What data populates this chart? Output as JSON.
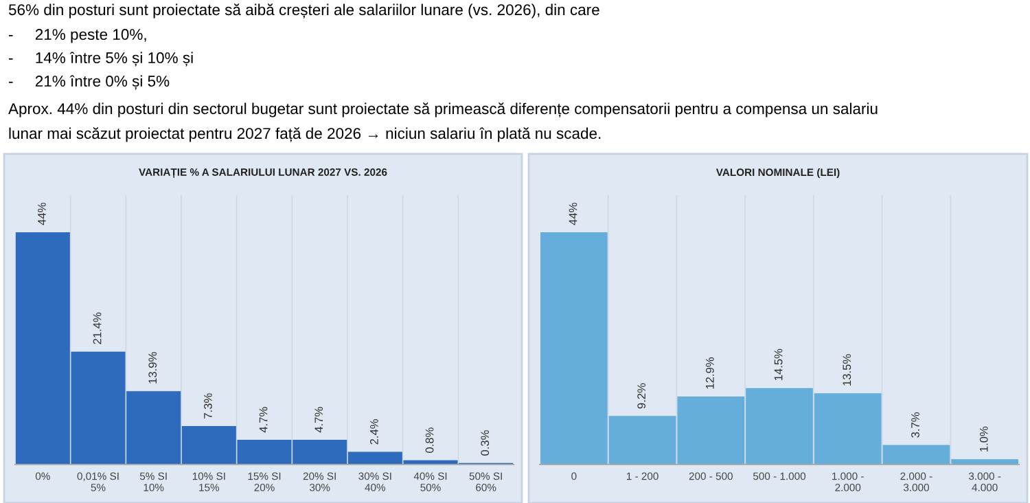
{
  "chart_data": [
    {
      "type": "other",
      "annotations": [
        "56% din posturi sunt proiectate să aibă creșteri ale salariilor lunare (vs. 2026), din care",
        "-     21% peste 10%,",
        "-     14% între 5% și 10% și",
        "-     21% între 0% și 5%",
        "Aprox. 44% din posturi din sectorul bugetar sunt proiectate să primească diferențe compensatorii pentru a compensa un salariu",
        "lunar mai scăzut proiectat pentru 2027 față de 2026 → niciun salariu în plată nu scade."
      ]
    },
    {
      "type": "bar",
      "title": "VARIAȚIE % A SALARIULUI LUNAR 2027 VS. 2026",
      "color": "#2e6bbd",
      "categories": [
        "0%",
        "0,01% SI\n5%",
        "5% SI\n10%",
        "10% SI\n15%",
        "15% SI\n20%",
        "20% SI\n30%",
        "30% SI\n40%",
        "40% SI\n50%",
        "50% SI\n60%"
      ],
      "values": [
        44,
        21.4,
        13.9,
        7.3,
        4.7,
        4.7,
        2.4,
        0.8,
        0.3
      ],
      "value_labels": [
        "44%",
        "21.4%",
        "13.9%",
        "7.3%",
        "4.7%",
        "4.7%",
        "2.4%",
        "0.8%",
        "0.3%"
      ]
    },
    {
      "type": "bar",
      "title": "VALORI NOMINALE (LEI)",
      "color": "#65aedc",
      "categories": [
        "0",
        "1 - 200",
        "200 - 500",
        "500 - 1.000",
        "1.000 -\n2.000",
        "2.000 -\n3.000",
        "3.000 -\n4.000"
      ],
      "values": [
        44,
        9.2,
        12.9,
        14.5,
        13.5,
        3.7,
        1.0
      ],
      "value_labels": [
        "44%",
        "9.2%",
        "12.9%",
        "14.5%",
        "13.5%",
        "3.7%",
        "1.0%"
      ]
    }
  ]
}
